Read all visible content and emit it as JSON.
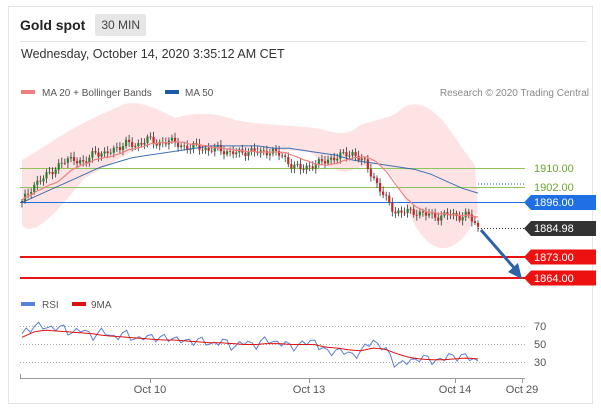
{
  "header": {
    "title": "Gold spot",
    "timeframe": "30 MIN",
    "datetime": "Wednesday, October 14, 2020 3:35:12 AM CET"
  },
  "legend": {
    "ma20": "MA 20 + Bollinger Bands",
    "ma50": "MA 50",
    "credit": "Research © 2020 Trading Central"
  },
  "rsi_legend": {
    "rsi": "RSI",
    "ma": "9MA"
  },
  "colors": {
    "ma20": "#f08080",
    "bands": "#fde0e0",
    "ma50": "#1f5aa8",
    "resistance": "#8fc45a",
    "support_blue": "#1f6fe5",
    "support_red": "#ee1111",
    "current": "#333333",
    "rsi_line": "#5b7fd6",
    "rsi_ma": "#dd1111",
    "arrow": "#2e63a8"
  },
  "chart_data": [
    {
      "type": "line",
      "title": "Gold spot",
      "timeframe": "30 MIN",
      "x_ticks": [
        "Oct 10",
        "Oct 13",
        "Oct 14",
        "Oct 29"
      ],
      "ylim": [
        1860,
        1925
      ],
      "price_series": [
        1896,
        1903,
        1906,
        1910,
        1913,
        1915,
        1912,
        1918,
        1916,
        1919,
        1921,
        1920,
        1923,
        1921,
        1922,
        1921,
        1919,
        1920,
        1918,
        1919,
        1917,
        1917,
        1918,
        1917,
        1918,
        1916,
        1912,
        1910,
        1912,
        1913,
        1915,
        1916,
        1917,
        1913,
        1906,
        1898,
        1892,
        1892,
        1892,
        1891,
        1890,
        1891,
        1890,
        1891,
        1885
      ],
      "ma50_series": [
        1896,
        1899,
        1902,
        1905,
        1908,
        1911,
        1913,
        1915,
        1916,
        1917,
        1918,
        1919,
        1920,
        1920,
        1920,
        1920,
        1919,
        1919,
        1918,
        1917,
        1916,
        1914,
        1913,
        1912,
        1911,
        1910,
        1908,
        1905,
        1902,
        1900
      ],
      "levels": [
        {
          "value": 1910.0,
          "label": "1910.00",
          "kind": "resistance"
        },
        {
          "value": 1902.0,
          "label": "1902.00",
          "kind": "resistance"
        },
        {
          "value": 1896.0,
          "label": "1896.00",
          "kind": "support"
        },
        {
          "value": 1884.98,
          "label": "1884.98",
          "kind": "current"
        },
        {
          "value": 1873.0,
          "label": "1873.00",
          "kind": "support"
        },
        {
          "value": 1864.0,
          "label": "1864.00",
          "kind": "support"
        }
      ],
      "forecast": "down toward 1864.00"
    },
    {
      "type": "line",
      "title": "RSI",
      "ylim": [
        20,
        80
      ],
      "y_ticks": [
        70,
        50,
        30
      ],
      "rsi_series": [
        60,
        72,
        68,
        70,
        64,
        66,
        60,
        64,
        58,
        62,
        55,
        60,
        56,
        58,
        52,
        56,
        50,
        54,
        48,
        52,
        50,
        55,
        52,
        48,
        50,
        55,
        40,
        45,
        38,
        42,
        55,
        45,
        28,
        30,
        36,
        32,
        34,
        38,
        36,
        32
      ],
      "ma9_series": [
        58,
        64,
        66,
        65,
        64,
        63,
        62,
        60,
        59,
        58,
        57,
        56,
        55,
        55,
        54,
        53,
        52,
        52,
        51,
        50,
        50,
        51,
        51,
        50,
        50,
        50,
        47,
        46,
        44,
        43,
        46,
        45,
        40,
        36,
        34,
        33,
        33,
        34,
        35,
        34
      ]
    }
  ]
}
